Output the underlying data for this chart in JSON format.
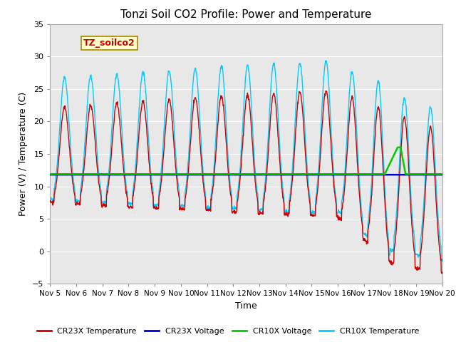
{
  "title": "Tonzi Soil CO2 Profile: Power and Temperature",
  "xlabel": "Time",
  "ylabel": "Power (V) / Temperature (C)",
  "ylim": [
    -5,
    35
  ],
  "yticks": [
    -5,
    0,
    5,
    10,
    15,
    20,
    25,
    30,
    35
  ],
  "xlim": [
    0,
    15
  ],
  "xtick_labels": [
    "Nov 5",
    "Nov 6",
    "Nov 7",
    "Nov 8",
    "Nov 9",
    "Nov 10",
    "Nov 11",
    "Nov 12",
    "Nov 13",
    "Nov 14",
    "Nov 15",
    "Nov 16",
    "Nov 17",
    "Nov 18",
    "Nov 19",
    "Nov 20"
  ],
  "cr23x_voltage_value": 11.8,
  "cr10x_voltage_value": 11.9,
  "legend_label_box": "TZ_soilco2",
  "plot_bg_color": "#e8e8e8",
  "cr23x_temp_color": "#cc0000",
  "cr23x_voltage_color": "#0000cc",
  "cr10x_voltage_color": "#00cc00",
  "cr10x_temp_color": "#00ccff",
  "grid_color": "#ffffff",
  "title_fontsize": 11,
  "label_fontsize": 9,
  "tick_fontsize": 8
}
